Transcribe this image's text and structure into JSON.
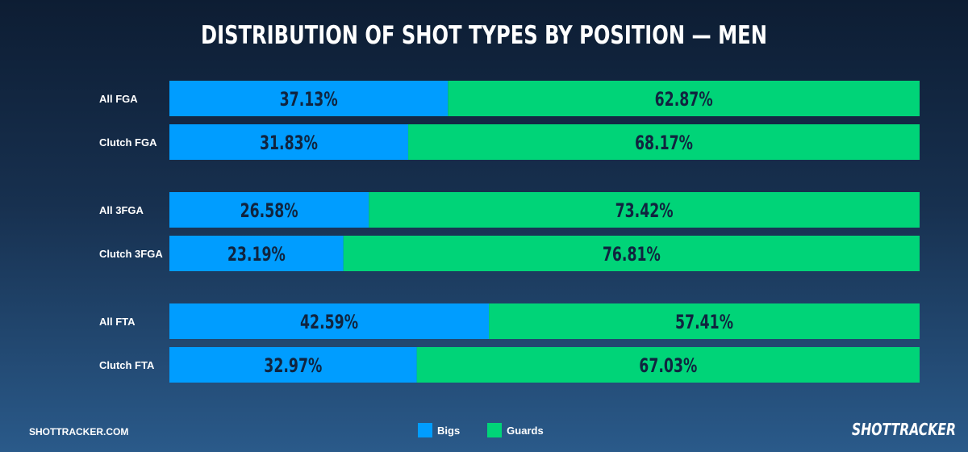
{
  "title": "DISTRIBUTION OF SHOT TYPES BY POSITION — MEN",
  "footer": {
    "site": "SHOTTRACKER.COM",
    "brand": "SHOTTRACKER"
  },
  "colors": {
    "bigs": "#009dff",
    "guards": "#00d478",
    "label_text": "#10243f"
  },
  "chart_data": {
    "type": "bar",
    "orientation": "horizontal",
    "stacked": true,
    "categories": [
      "All FGA",
      "Clutch FGA",
      "All 3FGA",
      "Clutch 3FGA",
      "All FTA",
      "Clutch FTA"
    ],
    "series": [
      {
        "name": "Bigs",
        "values": [
          37.13,
          31.83,
          26.58,
          23.19,
          42.59,
          32.97
        ],
        "labels": [
          "37.13%",
          "31.83%",
          "26.58%",
          "23.19%",
          "42.59%",
          "32.97%"
        ],
        "color": "#009dff"
      },
      {
        "name": "Guards",
        "values": [
          62.87,
          68.17,
          73.42,
          76.81,
          57.41,
          67.03
        ],
        "labels": [
          "62.87%",
          "68.17%",
          "73.42%",
          "76.81%",
          "57.41%",
          "67.03%"
        ],
        "color": "#00d478"
      }
    ],
    "xlim": [
      0,
      100
    ],
    "grid": false,
    "legend": "bottom-center"
  }
}
